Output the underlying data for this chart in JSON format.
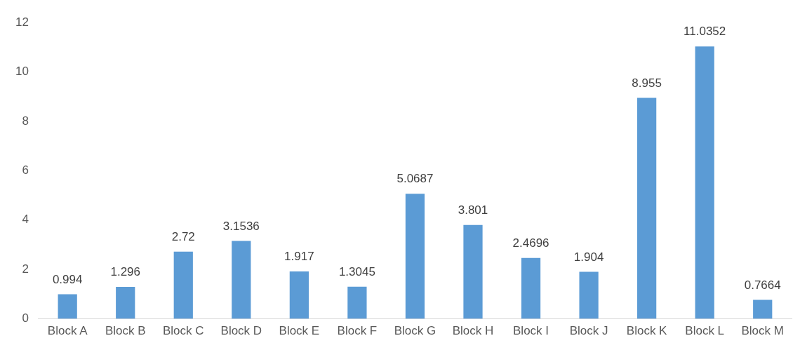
{
  "chart_data": {
    "type": "bar",
    "categories": [
      "Block A",
      "Block B",
      "Block C",
      "Block D",
      "Block E",
      "Block F",
      "Block G",
      "Block H",
      "Block I",
      "Block J",
      "Block K",
      "Block L",
      "Block M"
    ],
    "values": [
      0.994,
      1.296,
      2.72,
      3.1536,
      1.917,
      1.3045,
      5.0687,
      3.801,
      2.4696,
      1.904,
      8.955,
      11.0352,
      0.7664
    ],
    "color": "#5b9bd5",
    "ylim": [
      0,
      12
    ],
    "yticks": [
      0,
      2,
      4,
      6,
      8,
      10,
      12
    ],
    "grid": false,
    "legend": false,
    "data_labels": true
  }
}
